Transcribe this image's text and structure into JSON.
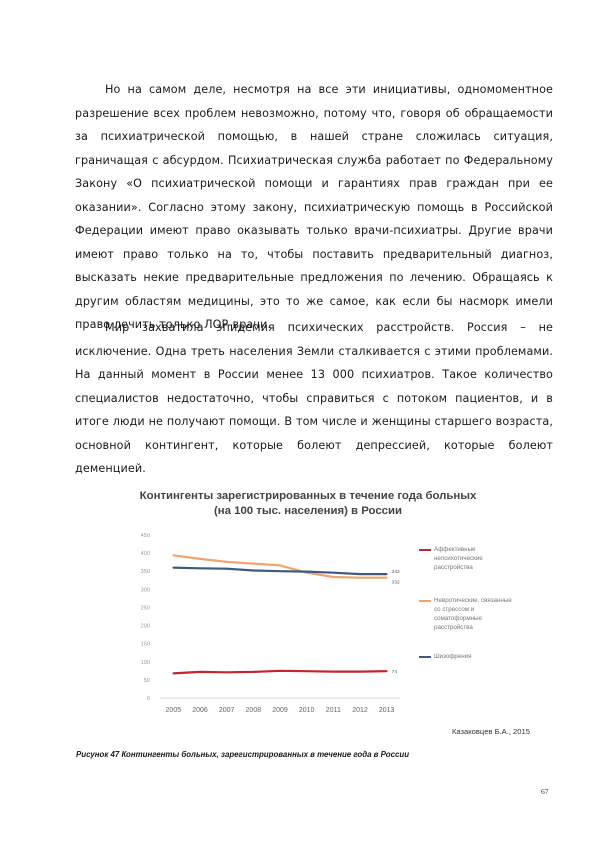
{
  "paragraphs": [
    "Но на самом деле, несмотря на все эти инициативы, одномоментное разрешение всех проблем невозможно, потому что, говоря об обращаемости за психиатрической помощью, в нашей стране сложилась ситуация, граничащая с абсурдом. Психиатрическая служба работает по Федеральному Закону «О психиатрической помощи и гарантиях прав граждан при ее оказании». Согласно этому закону, психиатрическую помощь в Российской Федерации имеют право оказывать только врачи-психиатры. Другие врачи имеют право только на то, чтобы поставить предварительный диагноз, высказать некие предварительные предложения по лечению. Обращаясь к другим областям медицины, это то же самое, как если бы насморк имели право лечить только ЛОР-врачи.",
    "Мир захватила эпидемия психических расстройств. Россия – не исключение. Одна треть населения Земли сталкивается с этими проблемами. На данный момент в России менее 13 000 психиатров. Такое количество специалистов недостаточно, чтобы справиться с потоком пациентов, и в итоге люди не получают помощи. В том числе и женщины старшего возраста, основной контингент, которые болеют депрессией, которые болеют деменцией."
  ],
  "chart_data": {
    "type": "line",
    "title_line1": "Контингенты зарегистрированных в течение года больных",
    "title_line2": "(на 100 тыс. населения) в России",
    "x": [
      "2005",
      "2006",
      "2007",
      "2008",
      "2009",
      "2010",
      "2011",
      "2012",
      "2013"
    ],
    "yticks": [
      "0",
      "50",
      "100",
      "150",
      "200",
      "250",
      "300",
      "350",
      "400",
      "450"
    ],
    "ylim": [
      0,
      450
    ],
    "grid": false,
    "legend_position": "right",
    "series": [
      {
        "name": "Аффективные непсихотические расстройства",
        "color": "#c0282d",
        "values": [
          68,
          72,
          71,
          72,
          75,
          74,
          73,
          73,
          74
        ],
        "end_label": "74"
      },
      {
        "name": "Невротические, связанные со стрессом и соматоформные расстройства",
        "color": "#f0a36a",
        "values": [
          394,
          384,
          376,
          371,
          366,
          346,
          334,
          332,
          332
        ],
        "end_label": "332"
      },
      {
        "name": "Шизофрения",
        "color": "#3d5a80",
        "values": [
          360,
          358,
          357,
          352,
          350,
          349,
          346,
          342,
          342
        ],
        "end_label": "342"
      }
    ]
  },
  "source": "Казаковцев Б.А., 2015",
  "caption": "Рисунок 47 Контингенты больных, зарегистрированных в течение года в России",
  "page_number": "67"
}
